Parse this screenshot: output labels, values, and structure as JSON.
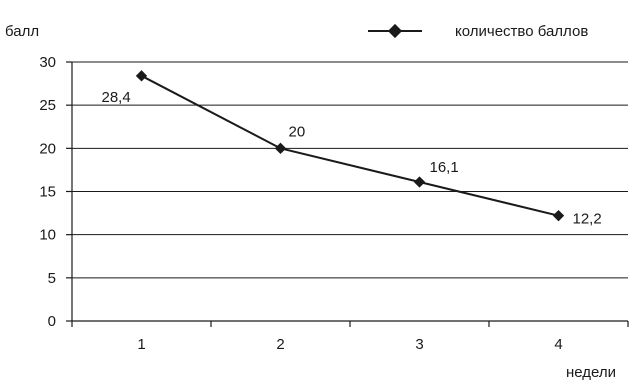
{
  "chart_data": {
    "type": "line",
    "ylabel": "балл",
    "xlabel": "недели",
    "categories": [
      "1",
      "2",
      "3",
      "4"
    ],
    "series": [
      {
        "name": "количество баллов",
        "values": [
          28.4,
          20,
          16.1,
          12.2
        ],
        "data_labels": [
          "28,4",
          "20",
          "16,1",
          "12,2"
        ]
      }
    ],
    "ylim": [
      0,
      30
    ],
    "yticks": [
      "0",
      "5",
      "10",
      "15",
      "20",
      "25",
      "30"
    ],
    "grid": true,
    "legend": "top-right",
    "marker": "diamond",
    "line_color": "#1a1a1a"
  }
}
